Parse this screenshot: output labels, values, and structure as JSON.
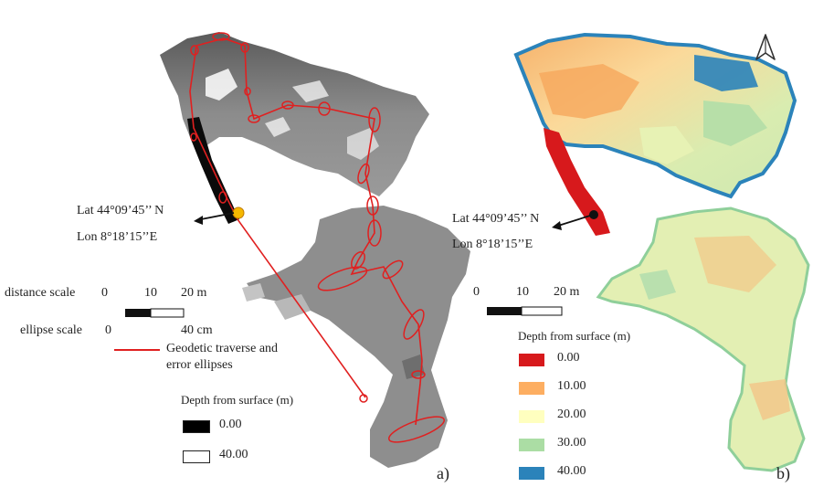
{
  "left_map": {
    "coord_lat": "Lat 44°09’45’’ N",
    "coord_lon": "Lon 8°18’15’’E",
    "distance_scale_label": "distance scale",
    "distance_ticks": [
      "0",
      "10",
      "20 m"
    ],
    "ellipse_scale_label": "ellipse scale",
    "ellipse_ticks": [
      "0",
      "40 cm"
    ],
    "traverse_legend_line1": "Geodetic traverse and",
    "traverse_legend_line2": "error ellipses",
    "depth_title": "Depth from surface (m)",
    "depth_items": [
      {
        "label": "0.00",
        "color": "#000000"
      },
      {
        "label": "40.00",
        "color": "#ffffff"
      }
    ],
    "panel_label": "a)",
    "traverse_color": "#e02020"
  },
  "right_map": {
    "coord_lat": "Lat 44°09’45’’ N",
    "coord_lon": "Lon 8°18’15’’E",
    "distance_ticks": [
      "0",
      "10",
      "20 m"
    ],
    "depth_title": "Depth from surface (m)",
    "depth_items": [
      {
        "label": "0.00",
        "color": "#d7191c"
      },
      {
        "label": "10.00",
        "color": "#fdae61"
      },
      {
        "label": "20.00",
        "color": "#ffffbf"
      },
      {
        "label": "30.00",
        "color": "#abdda4"
      },
      {
        "label": "40.00",
        "color": "#2b83ba"
      }
    ],
    "panel_label": "b)",
    "north_arrow_icon": "north-arrow-icon"
  }
}
